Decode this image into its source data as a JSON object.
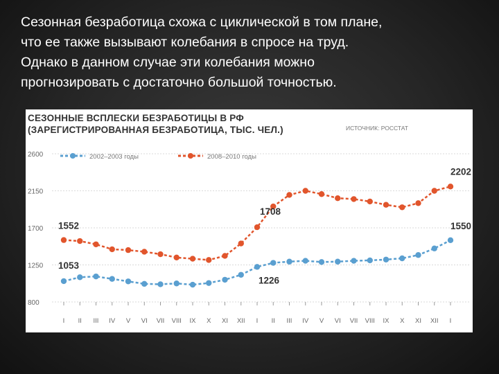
{
  "slide": {
    "lines": [
      "Сезонная безработица схожа с циклической в том плане,",
      "что ее также вызывают колебания в спросе на труд.",
      "Однако в данном случае эти колебания можно",
      "прогнозировать с достаточно большой точностью."
    ]
  },
  "chart_data": {
    "type": "line",
    "title": "СЕЗОННЫЕ ВСПЛЕСКИ БЕЗРАБОТИЦЫ В РФ",
    "subtitle": "(ЗАРЕГИСТРИРОВАННАЯ БЕЗРАБОТИЦА, ТЫС. ЧЕЛ.)",
    "source": "ИСТОЧНИК: РОССТАТ",
    "categories": [
      "I",
      "II",
      "III",
      "IV",
      "V",
      "VI",
      "VII",
      "VIII",
      "IX",
      "X",
      "XI",
      "XII",
      "I",
      "II",
      "III",
      "IV",
      "V",
      "VI",
      "VII",
      "VIII",
      "IX",
      "X",
      "XI",
      "XII",
      "I"
    ],
    "y_ticks": [
      "2600",
      "2150",
      "1700",
      "1250",
      "800"
    ],
    "ylim": [
      800,
      2600
    ],
    "grid": true,
    "legend_position": "top-left",
    "series": [
      {
        "name": "2002–2003 годы",
        "color": "#5a9fd0",
        "values": [
          1053,
          1100,
          1110,
          1080,
          1050,
          1020,
          1015,
          1025,
          1010,
          1030,
          1070,
          1130,
          1226,
          1275,
          1290,
          1300,
          1285,
          1290,
          1300,
          1305,
          1315,
          1330,
          1370,
          1450,
          1550
        ]
      },
      {
        "name": "2008–2010 годы",
        "color": "#e1552c",
        "values": [
          1552,
          1540,
          1500,
          1440,
          1430,
          1410,
          1380,
          1340,
          1325,
          1310,
          1360,
          1510,
          1708,
          1960,
          2100,
          2150,
          2110,
          2060,
          2050,
          2020,
          1980,
          1950,
          2000,
          2150,
          2202
        ]
      }
    ],
    "annotations": [
      {
        "text": "1552",
        "series": 1,
        "index": 0
      },
      {
        "text": "1053",
        "series": 0,
        "index": 0
      },
      {
        "text": "1708",
        "series": 1,
        "index": 12
      },
      {
        "text": "1226",
        "series": 0,
        "index": 12
      },
      {
        "text": "2202",
        "series": 1,
        "index": 24
      },
      {
        "text": "1550",
        "series": 0,
        "index": 24
      }
    ]
  }
}
